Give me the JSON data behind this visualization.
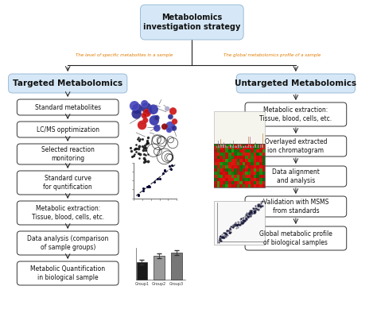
{
  "title": "Metabolomics\ninvestigation strategy",
  "left_branch_title": "Targeted Metabolomics",
  "right_branch_title": "Untargeted Metabolomics",
  "left_label": "The level of specific metabolites in a sample",
  "right_label": "The global metabolomics profile of a sample",
  "left_steps": [
    "Standard metabolites",
    "LC/MS opptimization",
    "Selected reaction\nmonitoring",
    "Standard curve\nfor quntification",
    "Metabolic extraction:\nTissue, blood, cells, etc.",
    "Data analysis (comparison\nof sample groups)",
    "Metabolic Quantification\nin biological sample"
  ],
  "right_steps": [
    "Metabolic extraction:\nTissue, blood, cells, etc.",
    "Overlayed extracted\nion chromatogram",
    "Data alignment\nand analysis",
    "Validation with MSMS\nfrom standards",
    "Global metabolic profile\nof biological samples"
  ],
  "bg_color": "#ffffff",
  "top_box_fill": "#d6e8f7",
  "top_box_edge": "#9bbbd8",
  "branch_box_fill": "#d6e8f7",
  "branch_box_edge": "#9bbbd8",
  "step_box_fill": "#ffffff",
  "step_box_edge": "#333333",
  "arrow_color": "#222222",
  "orange_color": "#e07b00",
  "text_color": "#111111"
}
